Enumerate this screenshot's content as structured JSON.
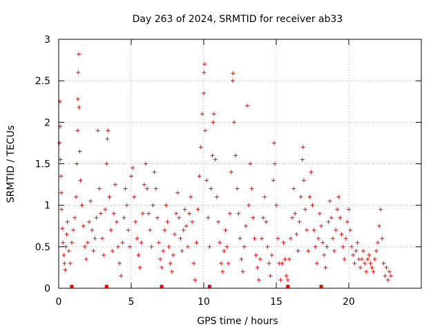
{
  "chart_data": {
    "type": "scatter",
    "title": "Day 263 of 2024, SRMTID for receiver ab33",
    "xlabel": "GPS time / hours",
    "ylabel": "SRMTID / TECUs",
    "xlim": [
      0,
      25
    ],
    "ylim": [
      0,
      3
    ],
    "xticks": [
      0,
      5,
      10,
      15,
      20
    ],
    "yticks": [
      0,
      0.5,
      1,
      1.5,
      2,
      2.5,
      3
    ],
    "xtick_labels": [
      "0",
      "5",
      "10",
      "15",
      "20"
    ],
    "ytick_labels": [
      "0",
      "0.5",
      "1",
      "1.5",
      "2",
      "2.5",
      "3"
    ],
    "grid": true,
    "marker": "+",
    "color": "#ff0000",
    "series": [
      {
        "name": "SRMTID",
        "points": [
          [
            0.05,
            1.75
          ],
          [
            0.08,
            2.25
          ],
          [
            0.1,
            1.95
          ],
          [
            0.12,
            1.55
          ],
          [
            0.15,
            1.35
          ],
          [
            0.18,
            1.15
          ],
          [
            0.2,
            0.95
          ],
          [
            0.25,
            0.72
          ],
          [
            0.3,
            0.55
          ],
          [
            0.35,
            0.4
          ],
          [
            0.4,
            0.3
          ],
          [
            0.45,
            0.22
          ],
          [
            0.5,
            0.5
          ],
          [
            0.55,
            0.65
          ],
          [
            0.6,
            0.8
          ],
          [
            0.7,
            0.45
          ],
          [
            0.8,
            0.3
          ],
          [
            0.9,
            0.55
          ],
          [
            1.0,
            0.7
          ],
          [
            1.1,
            0.85
          ],
          [
            1.2,
            1.1
          ],
          [
            1.25,
            1.5
          ],
          [
            1.3,
            1.9
          ],
          [
            1.32,
            2.28
          ],
          [
            1.35,
            2.6
          ],
          [
            1.38,
            2.82
          ],
          [
            1.4,
            2.18
          ],
          [
            1.45,
            1.65
          ],
          [
            1.5,
            1.3
          ],
          [
            1.6,
            1.0
          ],
          [
            1.7,
            0.75
          ],
          [
            1.8,
            0.5
          ],
          [
            1.9,
            0.35
          ],
          [
            2.0,
            0.55
          ],
          [
            2.1,
            0.8
          ],
          [
            2.2,
            1.05
          ],
          [
            2.3,
            0.7
          ],
          [
            2.4,
            0.45
          ],
          [
            2.5,
            0.6
          ],
          [
            2.6,
            0.85
          ],
          [
            2.7,
            1.9
          ],
          [
            2.8,
            1.2
          ],
          [
            2.9,
            0.9
          ],
          [
            3.0,
            0.6
          ],
          [
            3.1,
            0.4
          ],
          [
            3.2,
            0.95
          ],
          [
            3.3,
            1.5
          ],
          [
            3.35,
            1.8
          ],
          [
            3.4,
            1.9
          ],
          [
            3.5,
            1.1
          ],
          [
            3.6,
            0.7
          ],
          [
            3.7,
            0.45
          ],
          [
            3.8,
            0.9
          ],
          [
            3.9,
            1.25
          ],
          [
            4.0,
            0.8
          ],
          [
            4.1,
            0.5
          ],
          [
            4.2,
            0.3
          ],
          [
            4.3,
            0.15
          ],
          [
            4.4,
            0.55
          ],
          [
            4.5,
            0.85
          ],
          [
            4.6,
            1.2
          ],
          [
            4.7,
            1.0
          ],
          [
            4.8,
            0.7
          ],
          [
            4.9,
            0.5
          ],
          [
            5.0,
            1.35
          ],
          [
            5.1,
            1.45
          ],
          [
            5.2,
            1.1
          ],
          [
            5.3,
            0.8
          ],
          [
            5.4,
            0.6
          ],
          [
            5.5,
            0.4
          ],
          [
            5.6,
            0.25
          ],
          [
            5.7,
            0.55
          ],
          [
            5.8,
            0.9
          ],
          [
            5.9,
            1.25
          ],
          [
            6.0,
            1.5
          ],
          [
            6.1,
            1.2
          ],
          [
            6.2,
            0.9
          ],
          [
            6.3,
            0.7
          ],
          [
            6.4,
            0.5
          ],
          [
            6.5,
            1.0
          ],
          [
            6.6,
            1.4
          ],
          [
            6.7,
            1.2
          ],
          [
            6.8,
            0.85
          ],
          [
            6.9,
            0.55
          ],
          [
            7.0,
            0.35
          ],
          [
            7.1,
            0.25
          ],
          [
            7.2,
            0.45
          ],
          [
            7.3,
            0.7
          ],
          [
            7.4,
            1.0
          ],
          [
            7.5,
            0.8
          ],
          [
            7.6,
            0.5
          ],
          [
            7.7,
            0.3
          ],
          [
            7.8,
            0.2
          ],
          [
            7.9,
            0.4
          ],
          [
            8.0,
            0.65
          ],
          [
            8.1,
            0.9
          ],
          [
            8.2,
            1.15
          ],
          [
            8.3,
            0.85
          ],
          [
            8.4,
            0.6
          ],
          [
            8.5,
            0.45
          ],
          [
            8.6,
            0.7
          ],
          [
            8.7,
            0.95
          ],
          [
            8.8,
            0.75
          ],
          [
            8.9,
            0.5
          ],
          [
            9.0,
            0.9
          ],
          [
            9.1,
            1.1
          ],
          [
            9.2,
            0.8
          ],
          [
            9.3,
            0.3
          ],
          [
            9.4,
            0.1
          ],
          [
            9.5,
            0.55
          ],
          [
            9.6,
            0.95
          ],
          [
            9.7,
            1.35
          ],
          [
            9.8,
            1.7
          ],
          [
            9.9,
            2.1
          ],
          [
            10.0,
            2.35
          ],
          [
            10.02,
            2.6
          ],
          [
            10.05,
            2.7
          ],
          [
            10.1,
            1.9
          ],
          [
            10.2,
            1.3
          ],
          [
            10.3,
            0.85
          ],
          [
            10.4,
            0.5
          ],
          [
            10.5,
            1.2
          ],
          [
            10.6,
            1.6
          ],
          [
            10.65,
            2.0
          ],
          [
            10.7,
            2.1
          ],
          [
            10.8,
            1.55
          ],
          [
            10.9,
            1.1
          ],
          [
            11.0,
            0.8
          ],
          [
            11.1,
            0.55
          ],
          [
            11.2,
            0.3
          ],
          [
            11.3,
            0.2
          ],
          [
            11.4,
            0.45
          ],
          [
            11.5,
            0.7
          ],
          [
            11.6,
            0.5
          ],
          [
            11.7,
            0.3
          ],
          [
            11.8,
            0.9
          ],
          [
            11.9,
            1.4
          ],
          [
            12.0,
            2.5
          ],
          [
            12.02,
            2.59
          ],
          [
            12.1,
            2.0
          ],
          [
            12.2,
            1.6
          ],
          [
            12.3,
            1.2
          ],
          [
            12.4,
            0.9
          ],
          [
            12.5,
            0.6
          ],
          [
            12.6,
            0.35
          ],
          [
            12.7,
            0.2
          ],
          [
            12.8,
            0.5
          ],
          [
            12.9,
            0.75
          ],
          [
            13.0,
            2.2
          ],
          [
            13.1,
            1.0
          ],
          [
            13.2,
            1.5
          ],
          [
            13.3,
            1.2
          ],
          [
            13.4,
            0.85
          ],
          [
            13.5,
            0.6
          ],
          [
            13.6,
            0.4
          ],
          [
            13.7,
            0.25
          ],
          [
            13.8,
            0.1
          ],
          [
            13.9,
            0.35
          ],
          [
            14.0,
            0.6
          ],
          [
            14.1,
            0.85
          ],
          [
            14.2,
            1.1
          ],
          [
            14.3,
            0.8
          ],
          [
            14.4,
            0.5
          ],
          [
            14.5,
            0.3
          ],
          [
            14.6,
            0.15
          ],
          [
            14.7,
            0.4
          ],
          [
            14.8,
            1.3
          ],
          [
            14.85,
            1.75
          ],
          [
            14.9,
            1.5
          ],
          [
            15.0,
            1.0
          ],
          [
            15.1,
            0.6
          ],
          [
            15.2,
            0.3
          ],
          [
            15.3,
            0.1
          ],
          [
            15.4,
            0.3
          ],
          [
            15.5,
            0.55
          ],
          [
            15.6,
            0.35
          ],
          [
            15.7,
            0.15
          ],
          [
            15.8,
            0.1
          ],
          [
            15.9,
            0.35
          ],
          [
            16.0,
            0.6
          ],
          [
            16.1,
            0.85
          ],
          [
            16.2,
            1.2
          ],
          [
            16.3,
            0.9
          ],
          [
            16.4,
            0.65
          ],
          [
            16.5,
            0.45
          ],
          [
            16.6,
            0.8
          ],
          [
            16.7,
            1.1
          ],
          [
            16.8,
            1.55
          ],
          [
            16.85,
            1.7
          ],
          [
            16.9,
            1.3
          ],
          [
            17.0,
            0.95
          ],
          [
            17.1,
            0.7
          ],
          [
            17.2,
            0.45
          ],
          [
            17.3,
            1.1
          ],
          [
            17.4,
            1.4
          ],
          [
            17.5,
            1.0
          ],
          [
            17.6,
            0.7
          ],
          [
            17.7,
            0.5
          ],
          [
            17.8,
            0.3
          ],
          [
            17.9,
            0.6
          ],
          [
            18.0,
            0.9
          ],
          [
            18.1,
            0.75
          ],
          [
            18.2,
            0.55
          ],
          [
            18.3,
            0.4
          ],
          [
            18.4,
            0.25
          ],
          [
            18.5,
            0.5
          ],
          [
            18.6,
            0.8
          ],
          [
            18.7,
            1.05
          ],
          [
            18.8,
            0.85
          ],
          [
            18.9,
            0.6
          ],
          [
            19.0,
            0.45
          ],
          [
            19.1,
            0.7
          ],
          [
            19.2,
            0.95
          ],
          [
            19.3,
            1.1
          ],
          [
            19.4,
            0.85
          ],
          [
            19.5,
            0.65
          ],
          [
            19.6,
            0.5
          ],
          [
            19.7,
            0.35
          ],
          [
            19.8,
            0.6
          ],
          [
            19.9,
            0.8
          ],
          [
            20.0,
            0.95
          ],
          [
            20.1,
            0.7
          ],
          [
            20.2,
            0.5
          ],
          [
            20.3,
            0.4
          ],
          [
            20.4,
            0.3
          ],
          [
            20.5,
            0.45
          ],
          [
            20.6,
            0.55
          ],
          [
            20.7,
            0.35
          ],
          [
            20.8,
            0.25
          ],
          [
            20.9,
            0.35
          ],
          [
            21.0,
            0.45
          ],
          [
            21.1,
            0.3
          ],
          [
            21.2,
            0.2
          ],
          [
            21.3,
            0.35
          ],
          [
            21.4,
            0.4
          ],
          [
            21.5,
            0.3
          ],
          [
            21.6,
            0.25
          ],
          [
            21.7,
            0.2
          ],
          [
            21.8,
            0.35
          ],
          [
            21.9,
            0.45
          ],
          [
            22.0,
            0.55
          ],
          [
            22.1,
            0.75
          ],
          [
            22.2,
            0.95
          ],
          [
            22.3,
            0.6
          ],
          [
            22.4,
            0.3
          ],
          [
            22.5,
            0.15
          ],
          [
            22.6,
            0.25
          ],
          [
            22.7,
            0.1
          ],
          [
            22.8,
            0.2
          ],
          [
            22.9,
            0.15
          ]
        ]
      }
    ],
    "markers_on_axis": [
      0.9,
      3.3,
      7.1,
      10.4,
      15.8,
      18.1
    ]
  }
}
